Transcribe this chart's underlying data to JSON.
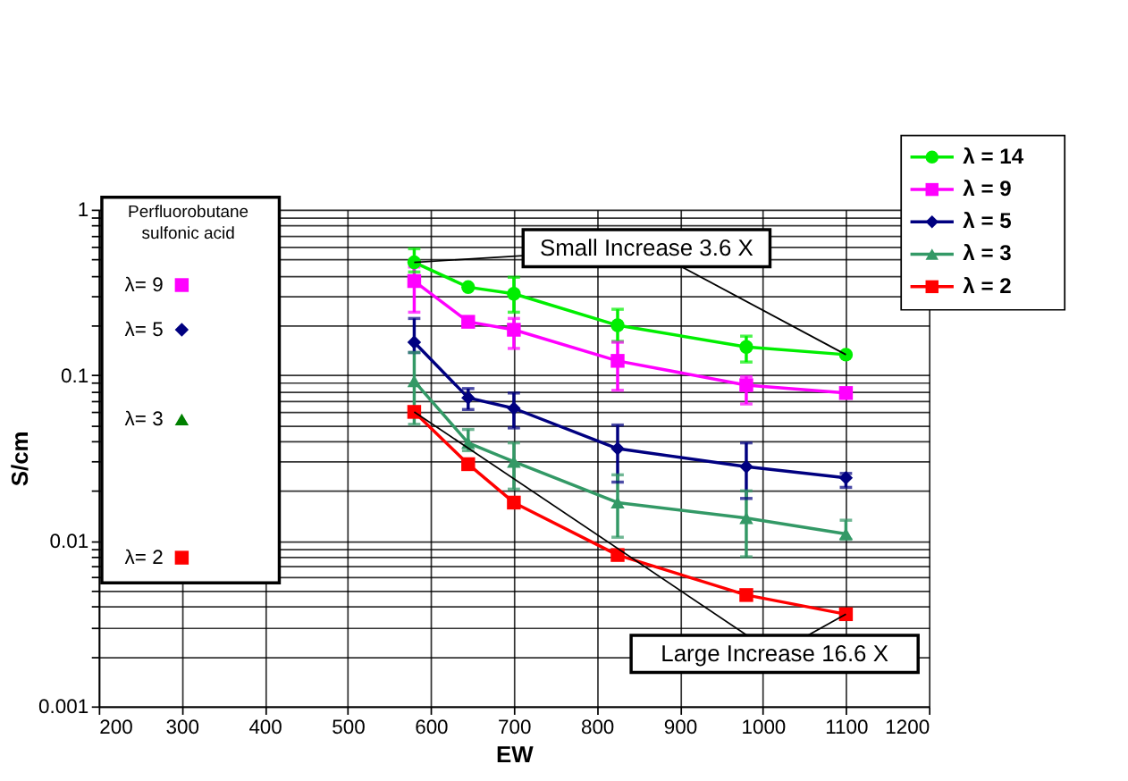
{
  "chart_data": {
    "type": "line",
    "xlabel": "EW",
    "ylabel": "S/cm",
    "log": "y",
    "grid": true,
    "legend": "top right",
    "xlim": [
      200,
      1200
    ],
    "xticks": [
      200,
      300,
      400,
      500,
      600,
      700,
      800,
      900,
      1000,
      1100,
      1200
    ],
    "ylim": [
      0.001,
      1
    ],
    "yticks": [
      0.001,
      {
        "value": 0.002,
        "label": null
      },
      {
        "value": 0.003,
        "label": null
      },
      {
        "value": 0.004,
        "label": null
      },
      {
        "value": 0.005,
        "label": null
      },
      {
        "value": 0.006,
        "label": null
      },
      {
        "value": 0.007,
        "label": null
      },
      {
        "value": 0.008,
        "label": null
      },
      {
        "value": 0.009,
        "label": null
      },
      0.01,
      {
        "value": 0.02,
        "label": null
      },
      {
        "value": 0.03,
        "label": null
      },
      {
        "value": 0.04,
        "label": null
      },
      {
        "value": 0.05,
        "label": null
      },
      {
        "value": 0.06,
        "label": null
      },
      {
        "value": 0.07,
        "label": null
      },
      {
        "value": 0.08,
        "label": null
      },
      {
        "value": 0.09,
        "label": null
      },
      0.1,
      {
        "value": 0.2,
        "label": null
      },
      {
        "value": 0.3,
        "label": null
      },
      {
        "value": 0.4,
        "label": null
      },
      {
        "value": 0.5,
        "label": null
      },
      {
        "value": 0.6,
        "label": null
      },
      {
        "value": 0.7,
        "label": null
      },
      {
        "value": 0.8,
        "label": null
      },
      {
        "value": 0.9,
        "label": null
      },
      1
    ],
    "series": [
      {
        "name": "λ = 14",
        "color": "#00ee00",
        "marker": "circle",
        "x": [
          580,
          645,
          700,
          825,
          980,
          1100
        ],
        "values": [
          0.48,
          0.34,
          0.31,
          0.2,
          0.148,
          0.133
        ],
        "errors": [
          [
            0.42,
            0.58
          ],
          null,
          [
            0.24,
            0.39
          ],
          [
            0.16,
            0.25
          ],
          [
            0.12,
            0.172
          ],
          null
        ]
      },
      {
        "name": "λ = 9",
        "color": "#ff00ff",
        "marker": "square",
        "x": [
          580,
          645,
          700,
          825,
          980,
          1100
        ],
        "values": [
          0.37,
          0.21,
          0.188,
          0.122,
          0.087,
          0.078
        ],
        "errors": [
          [
            0.24,
            0.45
          ],
          null,
          [
            0.145,
            0.22
          ],
          [
            0.081,
            0.158
          ],
          [
            0.067,
            0.098
          ],
          null
        ]
      },
      {
        "name": "λ = 5",
        "color": "#000080",
        "marker": "diamond",
        "x": [
          580,
          645,
          700,
          825,
          980,
          1100
        ],
        "values": [
          0.158,
          0.073,
          0.063,
          0.036,
          0.028,
          0.024
        ],
        "errors": [
          [
            0.137,
            0.22
          ],
          [
            0.062,
            0.083
          ],
          [
            0.048,
            0.078
          ],
          [
            0.0226,
            0.05
          ],
          [
            0.018,
            0.039
          ],
          [
            0.021,
            0.0255
          ]
        ]
      },
      {
        "name": "λ = 3",
        "color": "#339966",
        "marker": "triangle",
        "x": [
          580,
          645,
          700,
          825,
          980,
          1100
        ],
        "values": [
          0.092,
          0.039,
          0.03,
          0.017,
          0.0137,
          0.011
        ],
        "errors": [
          [
            0.0505,
            0.137
          ],
          [
            0.035,
            0.047
          ],
          [
            0.0205,
            0.039
          ],
          [
            0.0105,
            0.025
          ],
          [
            0.008,
            0.02
          ],
          [
            0.0102,
            0.0133
          ]
        ]
      },
      {
        "name": "λ = 2",
        "color": "#ff0000",
        "marker": "square",
        "x": [
          580,
          645,
          700,
          825,
          980,
          1100
        ],
        "values": [
          0.06,
          0.029,
          0.017,
          0.0082,
          0.0047,
          0.0036
        ]
      },
      {
        "name": "λ= 9",
        "type": "scatter",
        "color": "#ff00ff",
        "marker": "square",
        "x": [
          300
        ],
        "values": [
          0.35
        ]
      },
      {
        "name": "λ= 5",
        "type": "scatter",
        "color": "#000080",
        "marker": "diamond",
        "x": [
          300
        ],
        "values": [
          0.188
        ]
      },
      {
        "name": "λ= 3",
        "type": "scatter",
        "color": "#008000",
        "marker": "triangle",
        "x": [
          300
        ],
        "values": [
          0.054
        ]
      },
      {
        "name": "λ= 2",
        "type": "scatter",
        "color": "#ff0000",
        "marker": "square",
        "x": [
          300
        ],
        "values": [
          0.0079
        ]
      }
    ],
    "annotations": [
      {
        "text": "Small Increase 3.6 X",
        "x": 1100,
        "y": 0.133
      },
      {
        "text": "Large Increase 16.6 X",
        "x": 1100,
        "y": 0.0036
      },
      "Perfluorobutane sulfonic acid"
    ]
  }
}
